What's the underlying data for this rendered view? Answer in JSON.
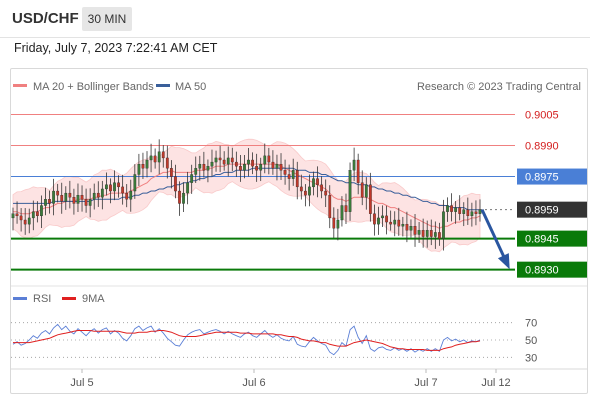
{
  "header": {
    "symbol": "USD/CHF",
    "timeframe": "30 MIN",
    "datetime": "Friday, July 7, 2023 7:22:41 AM CET"
  },
  "legend": {
    "ma20_label": "MA 20 + Bollinger Bands",
    "ma50_label": "MA 50",
    "source": "Research © 2023 Trading Central",
    "rsi_label": "RSI",
    "rsi_ma_label": "9MA"
  },
  "colors": {
    "ma20": "#f08080",
    "ma50": "#3a5f9a",
    "bollinger_fill": "#fde3e3",
    "candle_up": "#3a7a3a",
    "candle_down": "#c0392b",
    "resistance": "#f08080",
    "pivot": "#4a7fd6",
    "support": "#0a7a0a",
    "current": "#333333",
    "forecast_arrow": "#2a56a0",
    "rsi": "#5b7fd6",
    "rsi_ma": "#e02020"
  },
  "chart_data": [
    {
      "type": "candlestick",
      "title": "",
      "x_ticks": [
        "Jul 5",
        "Jul 6",
        "Jul 7",
        "Jul 12"
      ],
      "ylim": [
        0.8925,
        0.9012
      ],
      "levels": [
        {
          "name": "resistance-2",
          "value": 0.9005,
          "label": "0.9005"
        },
        {
          "name": "resistance-1",
          "value": 0.899,
          "label": "0.8990"
        },
        {
          "name": "pivot",
          "value": 0.8975,
          "label": "0.8975"
        },
        {
          "name": "current",
          "value": 0.8959,
          "label": "0.8959"
        },
        {
          "name": "support-1",
          "value": 0.8945,
          "label": "0.8945"
        },
        {
          "name": "support-2",
          "value": 0.893,
          "label": "0.8930"
        }
      ],
      "close_series": [
        0.8957,
        0.8956,
        0.8954,
        0.8952,
        0.8955,
        0.8958,
        0.8956,
        0.8961,
        0.8964,
        0.8962,
        0.8968,
        0.8966,
        0.8963,
        0.8967,
        0.8965,
        0.8962,
        0.8966,
        0.8964,
        0.8961,
        0.8964,
        0.8967,
        0.8965,
        0.8969,
        0.8971,
        0.8968,
        0.8972,
        0.897,
        0.8967,
        0.8964,
        0.8968,
        0.8976,
        0.8981,
        0.8979,
        0.8983,
        0.8985,
        0.8982,
        0.8987,
        0.8984,
        0.8979,
        0.8975,
        0.8968,
        0.8962,
        0.8967,
        0.8972,
        0.8976,
        0.8979,
        0.8981,
        0.8978,
        0.898,
        0.8982,
        0.8984,
        0.8983,
        0.8981,
        0.8984,
        0.8982,
        0.898,
        0.8978,
        0.8981,
        0.8983,
        0.898,
        0.8978,
        0.8981,
        0.8985,
        0.8982,
        0.8979,
        0.8981,
        0.8978,
        0.8976,
        0.8974,
        0.8978,
        0.897,
        0.8968,
        0.8966,
        0.897,
        0.8974,
        0.8971,
        0.8968,
        0.8966,
        0.8955,
        0.895,
        0.8954,
        0.8961,
        0.8958,
        0.8978,
        0.8983,
        0.8972,
        0.8965,
        0.8971,
        0.8957,
        0.8952,
        0.8955,
        0.8956,
        0.8953,
        0.8952,
        0.8954,
        0.8951,
        0.8952,
        0.8949,
        0.8951,
        0.8947,
        0.8949,
        0.8946,
        0.8949,
        0.8946,
        0.8948,
        0.8945,
        0.8958,
        0.8961,
        0.8958,
        0.896,
        0.8957,
        0.8959,
        0.8956,
        0.8958,
        0.8957,
        0.8959
      ],
      "ma20": [
        0.8958,
        0.8958,
        0.8957,
        0.8957,
        0.8957,
        0.8958,
        0.8958,
        0.8959,
        0.896,
        0.896,
        0.8961,
        0.8962,
        0.8962,
        0.8963,
        0.8963,
        0.8963,
        0.8964,
        0.8964,
        0.8964,
        0.8964,
        0.8965,
        0.8965,
        0.8966,
        0.8966,
        0.8967,
        0.8967,
        0.8967,
        0.8967,
        0.8967,
        0.8968,
        0.8969,
        0.897,
        0.8971,
        0.8972,
        0.8974,
        0.8975,
        0.8976,
        0.8977,
        0.8977,
        0.8978,
        0.8977,
        0.8977,
        0.8977,
        0.8977,
        0.8977,
        0.8978,
        0.8978,
        0.8978,
        0.8979,
        0.8979,
        0.898,
        0.898,
        0.898,
        0.8981,
        0.8981,
        0.8981,
        0.8981,
        0.8981,
        0.8981,
        0.8981,
        0.8981,
        0.8981,
        0.8981,
        0.8981,
        0.8981,
        0.8981,
        0.898,
        0.8979,
        0.8978,
        0.8977,
        0.8976,
        0.8975,
        0.8974,
        0.8973,
        0.8972,
        0.8971,
        0.897,
        0.8969,
        0.8967,
        0.8965,
        0.8964,
        0.8964,
        0.8963,
        0.8964,
        0.8965,
        0.8965,
        0.8965,
        0.8965,
        0.8964,
        0.8963,
        0.8962,
        0.8962,
        0.8961,
        0.896,
        0.896,
        0.8959,
        0.8958,
        0.8957,
        0.8956,
        0.8955,
        0.8954,
        0.8953,
        0.8952,
        0.8951,
        0.8951,
        0.895,
        0.8951,
        0.8951,
        0.8952,
        0.8953,
        0.8953,
        0.8954,
        0.8954,
        0.8955,
        0.8955,
        0.8956
      ],
      "ma50": [
        0.8962,
        0.8962,
        0.8962,
        0.8962,
        0.8962,
        0.8962,
        0.8962,
        0.8962,
        0.8962,
        0.8962,
        0.8963,
        0.8963,
        0.8963,
        0.8963,
        0.8963,
        0.8963,
        0.8963,
        0.8963,
        0.8963,
        0.8963,
        0.8964,
        0.8964,
        0.8964,
        0.8964,
        0.8964,
        0.8964,
        0.8964,
        0.8965,
        0.8965,
        0.8965,
        0.8966,
        0.8966,
        0.8967,
        0.8967,
        0.8968,
        0.8968,
        0.8969,
        0.8969,
        0.897,
        0.897,
        0.8971,
        0.8971,
        0.8972,
        0.8972,
        0.8973,
        0.8973,
        0.8974,
        0.8974,
        0.8975,
        0.8975,
        0.8976,
        0.8976,
        0.8977,
        0.8977,
        0.8977,
        0.8978,
        0.8978,
        0.8978,
        0.8978,
        0.8979,
        0.8979,
        0.8979,
        0.8979,
        0.8979,
        0.8979,
        0.8979,
        0.8979,
        0.8979,
        0.8979,
        0.8979,
        0.8978,
        0.8978,
        0.8978,
        0.8977,
        0.8977,
        0.8977,
        0.8976,
        0.8976,
        0.8975,
        0.8974,
        0.8973,
        0.8973,
        0.8972,
        0.8972,
        0.8972,
        0.8971,
        0.8971,
        0.8971,
        0.897,
        0.897,
        0.8969,
        0.8969,
        0.8968,
        0.8968,
        0.8967,
        0.8967,
        0.8966,
        0.8966,
        0.8965,
        0.8965,
        0.8964,
        0.8963,
        0.8963,
        0.8962,
        0.8962,
        0.8961,
        0.8961,
        0.8961,
        0.896,
        0.896,
        0.896,
        0.896,
        0.8959,
        0.8959,
        0.8959,
        0.8959
      ],
      "bollinger_width": 0.0011,
      "forecast": {
        "from": 0.8959,
        "to": 0.893
      }
    },
    {
      "type": "line",
      "title": "",
      "ylim": [
        20,
        80
      ],
      "y_ticks": [
        70,
        50,
        30
      ],
      "series": [
        {
          "name": "RSI",
          "values": [
            45,
            48,
            44,
            46,
            50,
            55,
            52,
            58,
            61,
            57,
            64,
            68,
            62,
            66,
            60,
            57,
            63,
            59,
            55,
            60,
            63,
            58,
            62,
            64,
            57,
            61,
            58,
            52,
            49,
            55,
            63,
            66,
            61,
            64,
            66,
            59,
            63,
            58,
            52,
            48,
            44,
            43,
            50,
            56,
            59,
            61,
            62,
            57,
            59,
            61,
            62,
            60,
            57,
            60,
            57,
            55,
            53,
            57,
            59,
            55,
            53,
            57,
            61,
            56,
            53,
            56,
            52,
            50,
            49,
            54,
            45,
            43,
            42,
            48,
            53,
            49,
            46,
            44,
            36,
            33,
            38,
            47,
            43,
            62,
            66,
            53,
            46,
            55,
            40,
            37,
            41,
            42,
            39,
            38,
            41,
            38,
            40,
            37,
            40,
            36,
            39,
            37,
            40,
            37,
            40,
            37,
            50,
            53,
            49,
            51,
            48,
            50,
            47,
            49,
            48,
            50
          ]
        },
        {
          "name": "9MA",
          "values": [
            47,
            47,
            47,
            47,
            47,
            48,
            49,
            50,
            51,
            52,
            54,
            56,
            57,
            58,
            59,
            60,
            61,
            61,
            61,
            61,
            60,
            60,
            60,
            60,
            60,
            60,
            60,
            59,
            58,
            58,
            58,
            59,
            59,
            59,
            60,
            60,
            61,
            61,
            60,
            59,
            57,
            55,
            54,
            54,
            54,
            54,
            55,
            56,
            57,
            58,
            59,
            59,
            59,
            59,
            59,
            59,
            58,
            58,
            58,
            57,
            57,
            57,
            57,
            57,
            57,
            56,
            56,
            55,
            54,
            54,
            53,
            51,
            50,
            49,
            49,
            48,
            47,
            47,
            45,
            44,
            43,
            43,
            43,
            45,
            47,
            48,
            49,
            50,
            49,
            48,
            47,
            46,
            44,
            42,
            41,
            40,
            40,
            39,
            39,
            39,
            39,
            39,
            38,
            38,
            38,
            38,
            40,
            41,
            42,
            44,
            45,
            46,
            47,
            48,
            48,
            49
          ]
        }
      ]
    }
  ]
}
